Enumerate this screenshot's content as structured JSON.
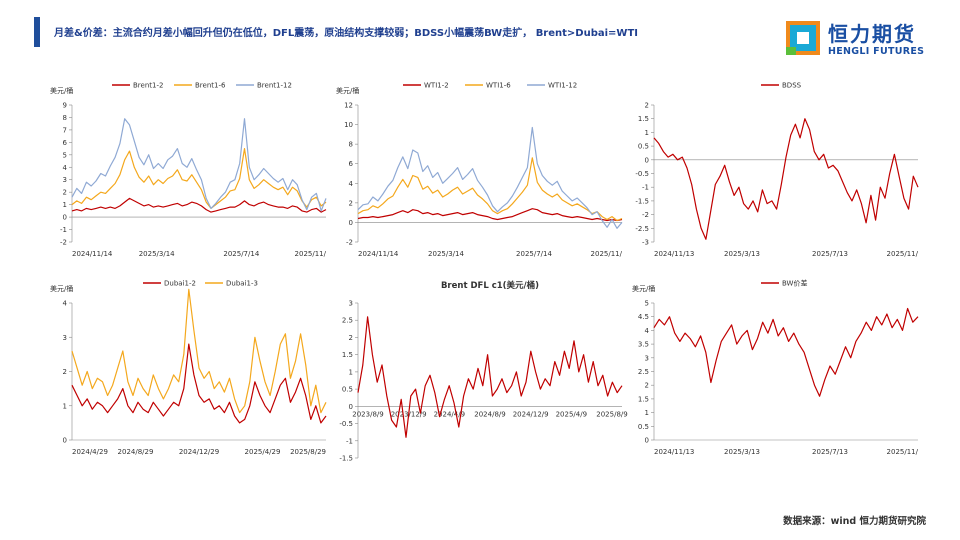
{
  "header": {
    "title": "月差&价差：主流合约月差小幅回升但仍在低位，DFL震荡，原油结构支撑较弱；BDSS小幅震荡BW走扩， Brent>Dubai=WTI",
    "logo_cn": "恒力期货",
    "logo_en": "HENGLI FUTURES"
  },
  "footer": {
    "source": "数据来源：wind 恒力期货研究院"
  },
  "colors": {
    "red": "#c00000",
    "orange": "#f4a81d",
    "blue": "#8fa9d4",
    "axis": "#666666",
    "title": "#1f3f8f"
  },
  "chart_data": [
    {
      "type": "line",
      "unit": "美元/桶",
      "ylim": [
        -2,
        9
      ],
      "yticks": [
        -2,
        -1,
        0,
        1,
        2,
        3,
        4,
        5,
        6,
        7,
        8,
        9
      ],
      "xlabels": [
        "2024/11/14",
        "2025/3/14",
        "2025/7/14",
        "2025/11/"
      ],
      "legend": "top",
      "series": [
        {
          "name": "Brent1-2",
          "color": "#c00000",
          "values": [
            0.5,
            0.6,
            0.5,
            0.7,
            0.6,
            0.7,
            0.8,
            0.7,
            0.8,
            0.7,
            0.9,
            1.2,
            1.5,
            1.3,
            1.1,
            0.9,
            1.0,
            0.8,
            0.9,
            0.8,
            0.9,
            1.0,
            1.1,
            0.9,
            1.0,
            1.2,
            1.1,
            0.9,
            0.6,
            0.4,
            0.5,
            0.6,
            0.7,
            0.8,
            0.8,
            1.0,
            1.3,
            1.0,
            0.9,
            1.1,
            1.2,
            1.0,
            0.9,
            0.8,
            0.8,
            0.7,
            0.9,
            0.8,
            0.5,
            0.4,
            0.6,
            0.7,
            0.4,
            0.6
          ]
        },
        {
          "name": "Brent1-6",
          "color": "#f4a81d",
          "values": [
            1.0,
            1.3,
            1.1,
            1.6,
            1.4,
            1.7,
            2.0,
            1.9,
            2.3,
            2.7,
            3.4,
            4.6,
            5.3,
            4.0,
            3.2,
            2.8,
            3.3,
            2.6,
            3.0,
            2.7,
            3.1,
            3.3,
            3.8,
            3.0,
            2.9,
            3.4,
            2.8,
            2.2,
            1.2,
            0.7,
            1.0,
            1.3,
            1.6,
            2.1,
            2.2,
            3.1,
            5.5,
            3.0,
            2.3,
            2.6,
            3.0,
            2.7,
            2.4,
            2.2,
            2.4,
            1.8,
            2.4,
            2.1,
            1.3,
            0.8,
            1.4,
            1.6,
            0.9,
            1.2
          ]
        },
        {
          "name": "Brent1-12",
          "color": "#8fa9d4",
          "values": [
            1.6,
            2.3,
            1.9,
            2.8,
            2.5,
            2.9,
            3.5,
            3.3,
            4.1,
            4.8,
            5.9,
            7.9,
            7.4,
            6.1,
            4.8,
            4.2,
            5.0,
            3.9,
            4.3,
            3.9,
            4.6,
            4.9,
            5.5,
            4.3,
            4.0,
            4.7,
            3.8,
            3.0,
            1.5,
            0.7,
            1.1,
            1.6,
            2.0,
            2.8,
            3.0,
            4.3,
            7.9,
            4.0,
            3.0,
            3.4,
            3.9,
            3.5,
            3.1,
            2.8,
            3.1,
            2.2,
            3.0,
            2.6,
            1.4,
            0.6,
            1.6,
            1.9,
            0.5,
            1.5
          ]
        }
      ]
    },
    {
      "type": "line",
      "unit": "美元/桶",
      "ylim": [
        -2,
        12
      ],
      "yticks": [
        -2,
        0,
        2,
        4,
        6,
        8,
        10,
        12
      ],
      "xlabels": [
        "2024/11/14",
        "2025/3/14",
        "2025/7/14",
        "2025/11/"
      ],
      "legend": "top",
      "series": [
        {
          "name": "WTI1-2",
          "color": "#c00000",
          "values": [
            0.4,
            0.5,
            0.5,
            0.6,
            0.5,
            0.6,
            0.7,
            0.8,
            1.0,
            1.2,
            1.0,
            1.3,
            1.2,
            0.9,
            1.0,
            0.8,
            0.9,
            0.7,
            0.8,
            0.9,
            1.0,
            0.8,
            0.9,
            1.0,
            0.8,
            0.7,
            0.6,
            0.4,
            0.3,
            0.4,
            0.5,
            0.6,
            0.8,
            1.0,
            1.2,
            1.4,
            1.3,
            1.0,
            0.9,
            0.8,
            0.9,
            0.7,
            0.6,
            0.5,
            0.6,
            0.5,
            0.4,
            0.3,
            0.4,
            0.3,
            0.2,
            0.3,
            0.2,
            0.3
          ]
        },
        {
          "name": "WTI1-6",
          "color": "#f4a81d",
          "values": [
            0.9,
            1.2,
            1.3,
            1.7,
            1.5,
            1.9,
            2.4,
            2.7,
            3.6,
            4.4,
            3.6,
            4.8,
            4.6,
            3.4,
            3.7,
            3.0,
            3.3,
            2.6,
            2.9,
            3.3,
            3.6,
            2.9,
            3.2,
            3.5,
            2.8,
            2.4,
            1.9,
            1.2,
            0.9,
            1.2,
            1.4,
            1.9,
            2.5,
            3.1,
            3.8,
            6.6,
            4.1,
            3.3,
            2.9,
            2.6,
            2.9,
            2.3,
            2.0,
            1.7,
            1.9,
            1.6,
            1.3,
            0.9,
            1.1,
            0.6,
            0.3,
            0.6,
            0.2,
            0.4
          ]
        },
        {
          "name": "WTI1-12",
          "color": "#8fa9d4",
          "values": [
            1.3,
            1.8,
            1.9,
            2.6,
            2.2,
            2.9,
            3.7,
            4.3,
            5.6,
            6.7,
            5.5,
            7.4,
            7.1,
            5.2,
            5.8,
            4.6,
            5.1,
            4.0,
            4.5,
            5.0,
            5.6,
            4.4,
            4.9,
            5.5,
            4.3,
            3.6,
            2.8,
            1.7,
            1.1,
            1.6,
            2.0,
            2.7,
            3.6,
            4.6,
            5.6,
            9.7,
            6.0,
            4.8,
            4.2,
            3.8,
            4.2,
            3.2,
            2.7,
            2.2,
            2.5,
            2.0,
            1.5,
            0.8,
            1.1,
            0.2,
            -0.5,
            0.3,
            -0.6,
            0.0
          ]
        }
      ]
    },
    {
      "type": "line",
      "unit": "",
      "ylim": [
        -3,
        2
      ],
      "yticks": [
        -3,
        -2.5,
        -2,
        -1.5,
        -1,
        -0.5,
        0,
        0.5,
        1,
        1.5,
        2
      ],
      "xlabels": [
        "2024/11/13",
        "2025/3/13",
        "2025/7/13",
        "2025/11/"
      ],
      "legend": "top",
      "series": [
        {
          "name": "BDSS",
          "color": "#c00000",
          "values": [
            0.8,
            0.6,
            0.3,
            0.1,
            0.2,
            0.0,
            0.1,
            -0.3,
            -0.9,
            -1.8,
            -2.5,
            -2.9,
            -1.9,
            -0.9,
            -0.6,
            -0.2,
            -0.8,
            -1.3,
            -1.0,
            -1.6,
            -1.8,
            -1.5,
            -1.9,
            -1.1,
            -1.6,
            -1.5,
            -1.8,
            -0.9,
            0.1,
            0.9,
            1.3,
            0.8,
            1.5,
            1.1,
            0.3,
            0.0,
            0.2,
            -0.3,
            -0.2,
            -0.4,
            -0.8,
            -1.2,
            -1.5,
            -1.1,
            -1.6,
            -2.3,
            -1.3,
            -2.2,
            -1.0,
            -1.4,
            -0.5,
            0.2,
            -0.6,
            -1.4,
            -1.8,
            -0.6,
            -1.0
          ]
        }
      ]
    },
    {
      "type": "line",
      "unit": "美元/桶",
      "ylim": [
        0,
        4
      ],
      "yticks": [
        0,
        1,
        2,
        3,
        4
      ],
      "xlabels": [
        "2024/4/29",
        "2024/8/29",
        "2024/12/29",
        "2025/4/29",
        "2025/8/29"
      ],
      "legend": "top",
      "series": [
        {
          "name": "Dubai1-2",
          "color": "#c00000",
          "values": [
            1.6,
            1.3,
            1.0,
            1.2,
            0.9,
            1.1,
            1.0,
            0.8,
            1.0,
            1.2,
            1.5,
            1.0,
            0.8,
            1.1,
            0.9,
            0.8,
            1.1,
            0.9,
            0.7,
            0.9,
            1.1,
            1.0,
            1.5,
            2.8,
            1.9,
            1.3,
            1.1,
            1.2,
            0.9,
            1.0,
            0.8,
            1.1,
            0.7,
            0.5,
            0.6,
            1.0,
            1.7,
            1.3,
            1.0,
            0.8,
            1.2,
            1.6,
            1.8,
            1.1,
            1.4,
            1.8,
            1.3,
            0.6,
            1.0,
            0.5,
            0.7
          ]
        },
        {
          "name": "Dubai1-3",
          "color": "#f4a81d",
          "values": [
            2.6,
            2.1,
            1.6,
            2.0,
            1.5,
            1.8,
            1.7,
            1.3,
            1.6,
            2.1,
            2.6,
            1.7,
            1.3,
            1.8,
            1.5,
            1.3,
            1.9,
            1.5,
            1.2,
            1.5,
            1.9,
            1.7,
            2.5,
            4.4,
            3.2,
            2.1,
            1.8,
            2.0,
            1.5,
            1.7,
            1.4,
            1.8,
            1.2,
            0.8,
            1.0,
            1.7,
            3.0,
            2.3,
            1.7,
            1.3,
            2.0,
            2.8,
            3.1,
            1.8,
            2.3,
            3.1,
            2.2,
            1.0,
            1.6,
            0.8,
            1.1
          ]
        }
      ]
    },
    {
      "type": "line",
      "title": "Brent DFL c1(美元/桶)",
      "ylim": [
        -1.5,
        3
      ],
      "yticks": [
        -1.5,
        -1,
        -0.5,
        0,
        0.5,
        1,
        1.5,
        2,
        2.5,
        3
      ],
      "xlabels": [
        "2023/8/9",
        "2023/12/9",
        "2024/4/9",
        "2024/8/9",
        "2024/12/9",
        "2025/4/9",
        "2025/8/9"
      ],
      "series": [
        {
          "name": "",
          "color": "#c00000",
          "values": [
            0.4,
            1.2,
            2.6,
            1.5,
            0.7,
            1.2,
            0.3,
            -0.4,
            -0.6,
            0.2,
            -0.9,
            0.3,
            0.5,
            -0.2,
            0.6,
            0.9,
            0.4,
            -0.3,
            0.2,
            0.6,
            0.1,
            -0.6,
            0.3,
            0.8,
            0.5,
            1.1,
            0.6,
            1.5,
            0.3,
            0.5,
            0.8,
            0.4,
            0.6,
            1.0,
            0.3,
            0.7,
            1.6,
            1.0,
            0.5,
            0.8,
            0.6,
            1.3,
            0.9,
            1.6,
            1.1,
            1.9,
            1.0,
            1.5,
            0.7,
            1.3,
            0.6,
            0.9,
            0.3,
            0.7,
            0.4,
            0.6
          ]
        }
      ]
    },
    {
      "type": "line",
      "unit": "美元/桶",
      "ylim": [
        0,
        5
      ],
      "yticks": [
        0,
        0.5,
        1,
        1.5,
        2,
        2.5,
        3,
        3.5,
        4,
        4.5,
        5
      ],
      "xlabels": [
        "2024/11/13",
        "2025/3/13",
        "2025/7/13",
        "2025/11/"
      ],
      "legend": "top",
      "series": [
        {
          "name": "BW价差",
          "color": "#c00000",
          "values": [
            4.1,
            4.4,
            4.2,
            4.5,
            3.9,
            3.6,
            3.9,
            3.7,
            3.4,
            3.8,
            3.2,
            2.1,
            2.9,
            3.6,
            3.9,
            4.2,
            3.5,
            3.8,
            4.0,
            3.3,
            3.7,
            4.3,
            3.9,
            4.4,
            3.8,
            4.1,
            3.6,
            3.9,
            3.5,
            3.2,
            2.6,
            2.0,
            1.6,
            2.2,
            2.7,
            2.4,
            2.9,
            3.4,
            3.0,
            3.6,
            3.9,
            4.3,
            4.0,
            4.5,
            4.2,
            4.6,
            4.1,
            4.4,
            4.0,
            4.8,
            4.3,
            4.5
          ]
        }
      ]
    }
  ]
}
